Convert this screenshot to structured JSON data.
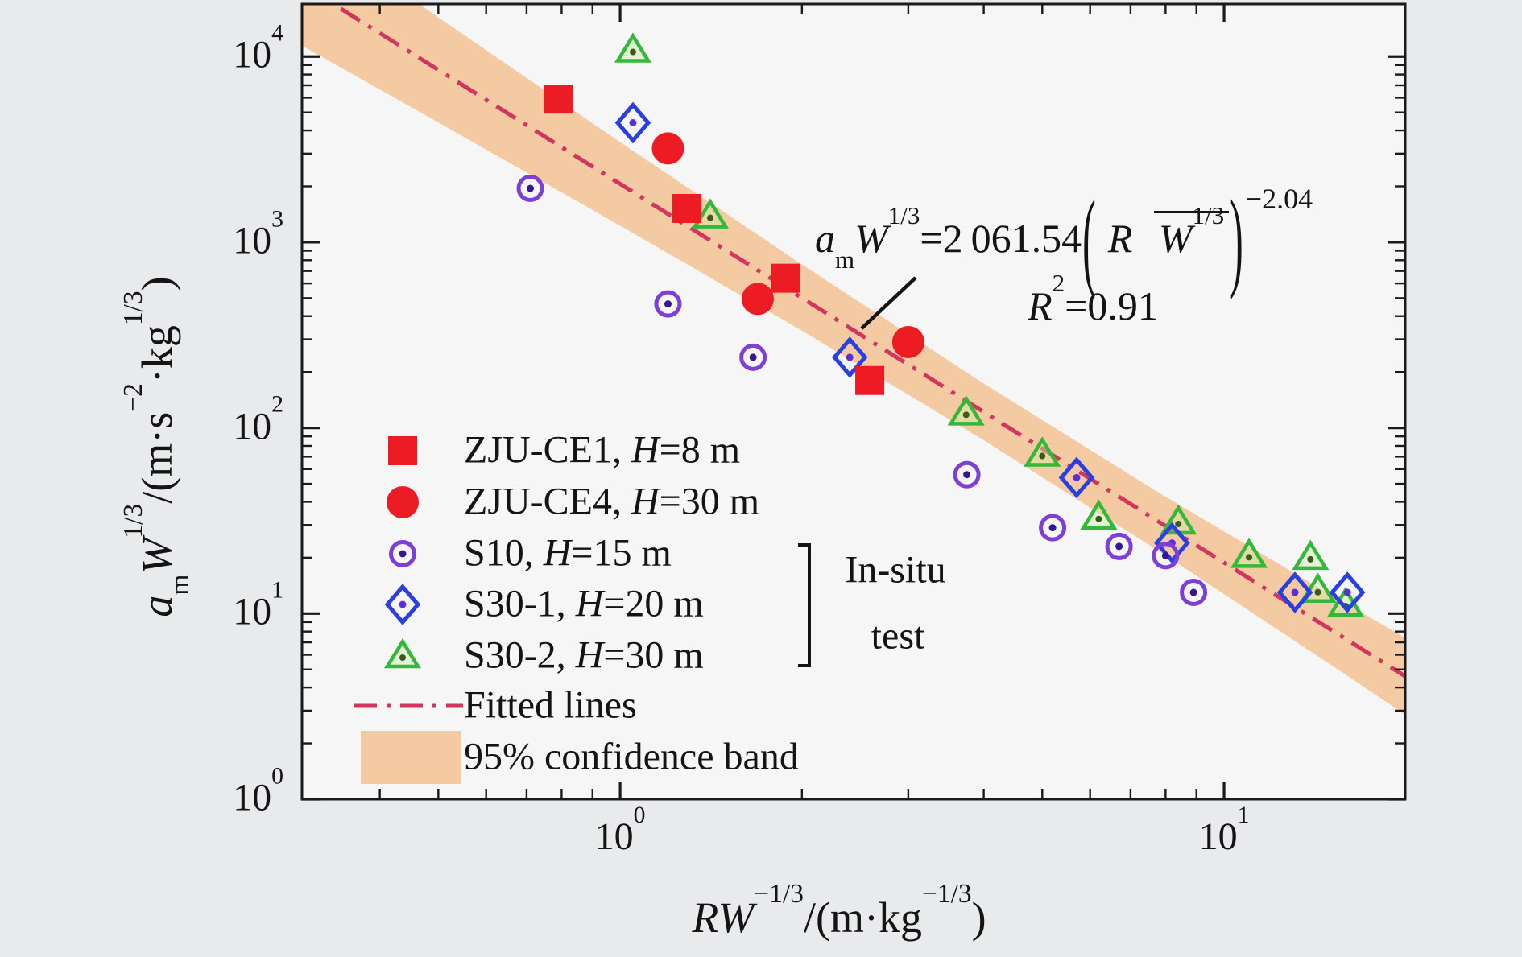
{
  "figure": {
    "bg_color": "#e9eaec",
    "plot_bg_color": "#f6f6f7",
    "frame_color": "#1a1a1a"
  },
  "chart_data": {
    "type": "scatter",
    "x_scale": "log",
    "y_scale": "log",
    "xlim": [
      0.2973,
      19.95
    ],
    "ylim": [
      1,
      19180
    ],
    "grid": false,
    "xlabel_html": "<i>RW</i><sup>−1/3</sup>/(m·kg<sup>−1/3</sup>)",
    "ylabel_html": "<i>a</i><sub>m</sub><i>W</i><sup>1/3</sup>/(m·s<sup>−2</sup>·kg<sup>1/3</sup>)",
    "axes": {
      "x": {
        "major": [
          {
            "v": 1,
            "html": "10<sup>0</sup>"
          },
          {
            "v": 10,
            "html": "10<sup>1</sup>"
          }
        ],
        "minor": [
          0.4,
          0.5,
          0.6,
          0.7,
          0.8,
          0.9,
          2,
          3,
          4,
          5,
          6,
          7,
          8,
          9
        ]
      },
      "y": {
        "major": [
          {
            "v": 1,
            "html": "10<sup>0</sup>"
          },
          {
            "v": 10,
            "html": "10<sup>1</sup>"
          },
          {
            "v": 100,
            "html": "10<sup>2</sup>"
          },
          {
            "v": 1000,
            "html": "10<sup>3</sup>"
          },
          {
            "v": 10000,
            "html": "10<sup>4</sup>"
          }
        ],
        "minor": [
          2,
          3,
          4,
          5,
          6,
          7,
          8,
          9,
          20,
          30,
          40,
          50,
          60,
          70,
          80,
          90,
          200,
          300,
          400,
          500,
          600,
          700,
          800,
          900,
          2000,
          3000,
          4000,
          5000,
          6000,
          7000,
          8000,
          9000
        ]
      }
    },
    "series": [
      {
        "name": "S30-2",
        "marker": "triangle-open",
        "color": "#35b83a",
        "dot_color": "#3c5a18",
        "fill": "rgba(205,240,170,0.45)",
        "points": [
          [
            1.05,
            10800
          ],
          [
            1.41,
            1380
          ],
          [
            3.74,
            120
          ],
          [
            5.0,
            72
          ],
          [
            6.2,
            33
          ],
          [
            8.4,
            31
          ],
          [
            11.0,
            20.5
          ],
          [
            13.9,
            20
          ],
          [
            14.3,
            13.3
          ],
          [
            15.9,
            11.2
          ]
        ]
      },
      {
        "name": "S30-1",
        "marker": "diamond-open",
        "color": "#2a3fe0",
        "dot_color": "#5c2ed6",
        "fill": "none",
        "points": [
          [
            1.05,
            4400
          ],
          [
            2.4,
            240
          ],
          [
            5.7,
            54
          ],
          [
            8.2,
            24
          ],
          [
            13.1,
            13
          ],
          [
            16.0,
            13
          ]
        ]
      },
      {
        "name": "S10",
        "marker": "circle-open",
        "color": "#7d3fd6",
        "dot_color": "#35188f",
        "fill": "none",
        "points": [
          [
            0.71,
            1950
          ],
          [
            1.2,
            465
          ],
          [
            1.66,
            240
          ],
          [
            3.75,
            56
          ],
          [
            5.2,
            29
          ],
          [
            6.7,
            23
          ],
          [
            8.0,
            20.5
          ],
          [
            8.9,
            13
          ]
        ]
      },
      {
        "name": "ZJU-CE4",
        "marker": "circle-filled",
        "color": "#ed1c24",
        "points": [
          [
            1.2,
            3200
          ],
          [
            1.69,
            495
          ],
          [
            3.0,
            290
          ]
        ]
      },
      {
        "name": "ZJU-CE1",
        "marker": "square-filled",
        "color": "#ed1c24",
        "points": [
          [
            0.79,
            5900
          ],
          [
            1.29,
            1520
          ],
          [
            1.88,
            640
          ],
          [
            2.59,
            180
          ]
        ]
      }
    ],
    "fit": {
      "equation": "a_m W^{1/3} = 2 061.54 (R/W^{1/3})^{-2.04}",
      "a": 2061.54,
      "b": -2.04,
      "r2": 0.91,
      "color": "#d23560",
      "dash": [
        28,
        12,
        5,
        12
      ],
      "width": 5
    },
    "band": {
      "label": "95% confidence band",
      "color": "#f4caa2",
      "x": [
        0.2973,
        0.501,
        1.0,
        2.0,
        3.98,
        7.94,
        15.85,
        19.95
      ],
      "upper": [
        52400,
        16180,
        3460,
        759,
        175,
        43.2,
        11.4,
        7.41
      ],
      "lower": [
        11450,
        4400,
        1228,
        334,
        86.7,
        20.9,
        4.72,
        2.85
      ]
    }
  },
  "annotation": {
    "eq_prefix_html": "<i>a</i><sub>m</sub><i>W</i><sup>1/3</sup>=2 061.54",
    "frac_num_html": "<i>R</i>",
    "frac_den_html": "<i>W</i><sup>1/3</sup>",
    "exponent": "−2.04",
    "r2_html": "<i>R</i><sup>2</sup>=0.91"
  },
  "legend": {
    "rows": [
      {
        "marker": "square-filled",
        "color": "#ed1c24",
        "label_html": "ZJU-CE1, <i>H</i>=8 m"
      },
      {
        "marker": "circle-filled",
        "color": "#ed1c24",
        "label_html": "ZJU-CE4, <i>H</i>=30 m"
      },
      {
        "marker": "circle-open",
        "color": "#7d3fd6",
        "dot_color": "#35188f",
        "label_html": "S10, <i>H</i>=15 m"
      },
      {
        "marker": "diamond-open",
        "color": "#2a3fe0",
        "dot_color": "#5c2ed6",
        "label_html": "S30-1, <i>H</i>=20 m"
      },
      {
        "marker": "triangle-open",
        "color": "#35b83a",
        "dot_color": "#3c5a18",
        "fill": "rgba(205,240,170,0.45)",
        "label_html": "S30-2, <i>H</i>=30 m"
      },
      {
        "marker": "line-dashdot",
        "color": "#d23560",
        "label_html": "Fitted lines"
      },
      {
        "marker": "band-swatch",
        "color": "#f4caa2",
        "label_html": "95% confidence band"
      }
    ],
    "group_label_lines": [
      "In-situ",
      "test"
    ]
  }
}
